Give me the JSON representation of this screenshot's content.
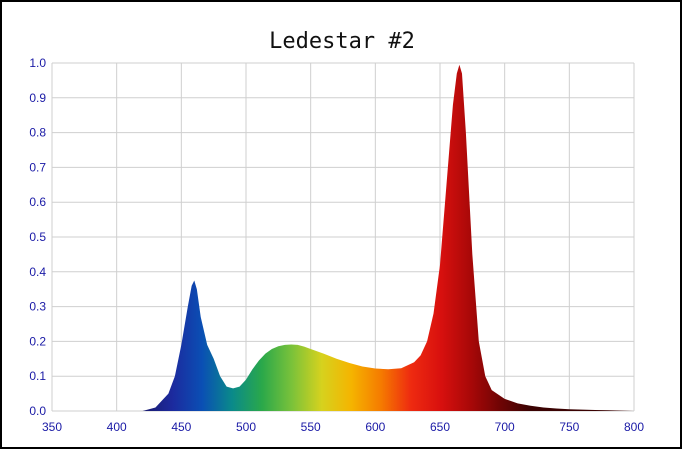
{
  "chart_data": {
    "type": "area",
    "title": "Ledestar #2",
    "xlabel": "",
    "ylabel": "",
    "xlim": [
      350,
      800
    ],
    "ylim": [
      0,
      1.0
    ],
    "grid": true,
    "legend": "none",
    "x_ticks": [
      "350",
      "400",
      "450",
      "500",
      "550",
      "600",
      "650",
      "700",
      "750",
      "800"
    ],
    "y_ticks": [
      "0.0",
      "0.1",
      "0.2",
      "0.3",
      "0.4",
      "0.5",
      "0.6",
      "0.7",
      "0.8",
      "0.9",
      "1.0"
    ],
    "series": [
      {
        "x": [
          420,
          430,
          440,
          445,
          450,
          455,
          458,
          460,
          462,
          465,
          470,
          475,
          480,
          485,
          490,
          495,
          500,
          505,
          510,
          515,
          520,
          525,
          530,
          535,
          540,
          545,
          550,
          560,
          570,
          580,
          590,
          600,
          610,
          620,
          630,
          635,
          640,
          645,
          650,
          655,
          660,
          663,
          665,
          667,
          670,
          675,
          680,
          685,
          690,
          700,
          710,
          720,
          730,
          740,
          750,
          760,
          770,
          780,
          790,
          800
        ],
        "values": [
          0.0,
          0.01,
          0.05,
          0.1,
          0.19,
          0.3,
          0.36,
          0.375,
          0.35,
          0.27,
          0.19,
          0.15,
          0.1,
          0.07,
          0.065,
          0.07,
          0.09,
          0.12,
          0.145,
          0.165,
          0.178,
          0.186,
          0.19,
          0.191,
          0.19,
          0.185,
          0.178,
          0.165,
          0.15,
          0.138,
          0.128,
          0.122,
          0.12,
          0.123,
          0.14,
          0.16,
          0.2,
          0.28,
          0.42,
          0.65,
          0.88,
          0.97,
          0.995,
          0.97,
          0.8,
          0.45,
          0.2,
          0.1,
          0.06,
          0.035,
          0.022,
          0.015,
          0.01,
          0.007,
          0.005,
          0.004,
          0.003,
          0.002,
          0.001,
          0.0
        ]
      }
    ],
    "colors": {
      "grid": "#cfcfcf",
      "axis_labels": "#1a1aa6",
      "spectrum_stops": [
        "#1a1a6e",
        "#1c2a9e",
        "#0a4fb4",
        "#0a8a8a",
        "#2aa84a",
        "#7ac23a",
        "#d6d21e",
        "#f5b400",
        "#f57a00",
        "#ee2a10",
        "#d8100e",
        "#a80808",
        "#6e0404",
        "#3a0202"
      ]
    }
  }
}
